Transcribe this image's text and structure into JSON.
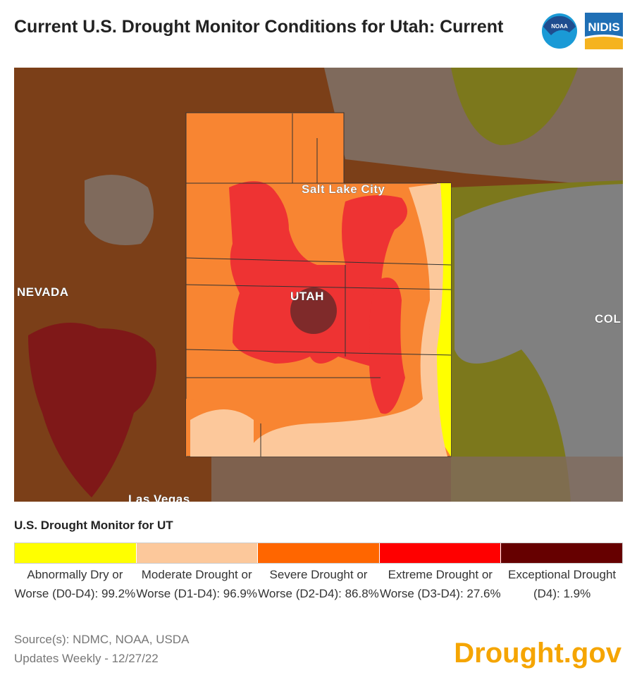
{
  "title": "Current U.S. Drought Monitor Conditions for Utah: Current",
  "logos": {
    "noaa": "NOAA",
    "nidis": "NIDIS"
  },
  "map": {
    "labels": {
      "slc": "Salt Lake City",
      "utah": "UTAH",
      "nevada": "NEVADA",
      "colorado": "COL",
      "las_vegas": "Las Vegas"
    }
  },
  "legend": {
    "title": "U.S. Drought Monitor for UT",
    "items": [
      {
        "label": "Abnormally Dry or Worse (D0-D4): 99.2%",
        "color": "#ffff00",
        "percent": 99.2
      },
      {
        "label": "Moderate Drought or Worse (D1-D4): 96.9%",
        "color": "#fcd09a",
        "percent": 96.9
      },
      {
        "label": "Severe Drought or Worse (D2-D4): 86.8%",
        "color": "#ff6600",
        "percent": 86.8
      },
      {
        "label": "Extreme Drought or Worse (D3-D4): 27.6%",
        "color": "#ff0000",
        "percent": 27.6
      },
      {
        "label": "Exceptional Drought (D4): 1.9%",
        "color": "#660000",
        "percent": 1.9
      }
    ]
  },
  "source": "Source(s): NDMC, NOAA, USDA",
  "updates": "Updates Weekly - 12/27/22",
  "brand": "Drought.gov"
}
